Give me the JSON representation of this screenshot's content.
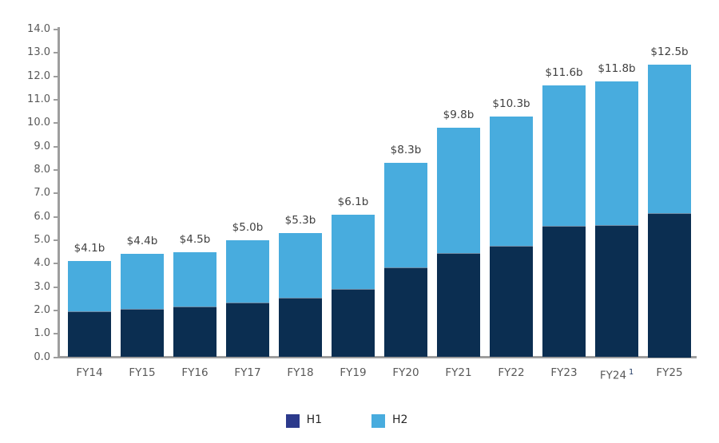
{
  "chart_data": {
    "type": "bar",
    "stacked": true,
    "title": "",
    "xlabel": "",
    "ylabel": "",
    "categories": [
      "FY14",
      "FY15",
      "FY16",
      "FY17",
      "FY18",
      "FY19",
      "FY20",
      "FY21",
      "FY22",
      "FY23",
      "FY24",
      "FY25"
    ],
    "category_superscripts": [
      "",
      "",
      "",
      "",
      "",
      "",
      "",
      "",
      "",
      "",
      "1",
      ""
    ],
    "series": [
      {
        "name": "H1",
        "color": "#0B2E51",
        "legend_color": "#2C3A8C",
        "values": [
          1.95,
          2.05,
          2.15,
          2.35,
          2.55,
          2.9,
          3.85,
          4.45,
          4.75,
          5.6,
          5.65,
          6.15
        ]
      },
      {
        "name": "H2",
        "color": "#48ACDE",
        "legend_color": "#48ACDE",
        "values": [
          2.15,
          2.35,
          2.35,
          2.65,
          2.75,
          3.2,
          4.45,
          5.35,
          5.55,
          6.0,
          6.15,
          6.35
        ]
      }
    ],
    "totals": [
      4.1,
      4.4,
      4.5,
      5.0,
      5.3,
      6.1,
      8.3,
      9.8,
      10.3,
      11.6,
      11.8,
      12.5
    ],
    "total_labels": [
      "$4.1b",
      "$4.4b",
      "$4.5b",
      "$5.0b",
      "$5.3b",
      "$6.1b",
      "$8.3b",
      "$9.8b",
      "$10.3b",
      "$11.6b",
      "$11.8b",
      "$12.5b"
    ],
    "ylim": [
      0,
      14
    ],
    "ytick_labels": [
      "0.0",
      "1.0",
      "2.0",
      "3.0",
      "4.0",
      "5.0",
      "6.0",
      "7.0",
      "8.0",
      "9.0",
      "10.0",
      "11.0",
      "12.0",
      "13.0",
      "14.0"
    ],
    "grid": false,
    "legend_position": "bottom"
  },
  "style": {
    "background": "#FFFFFF",
    "axis_color": "#9E9E9E",
    "tick_label_color": "#595959",
    "category_label_color": "#595959",
    "data_label_color": "#404040",
    "superscript_color": "#1F3864",
    "legend_text_color": "#262626",
    "h1_bar_color": "#0B2E51",
    "h1_legend_swatch_color": "#2C3A8C",
    "h2_bar_color": "#48ACDE"
  }
}
